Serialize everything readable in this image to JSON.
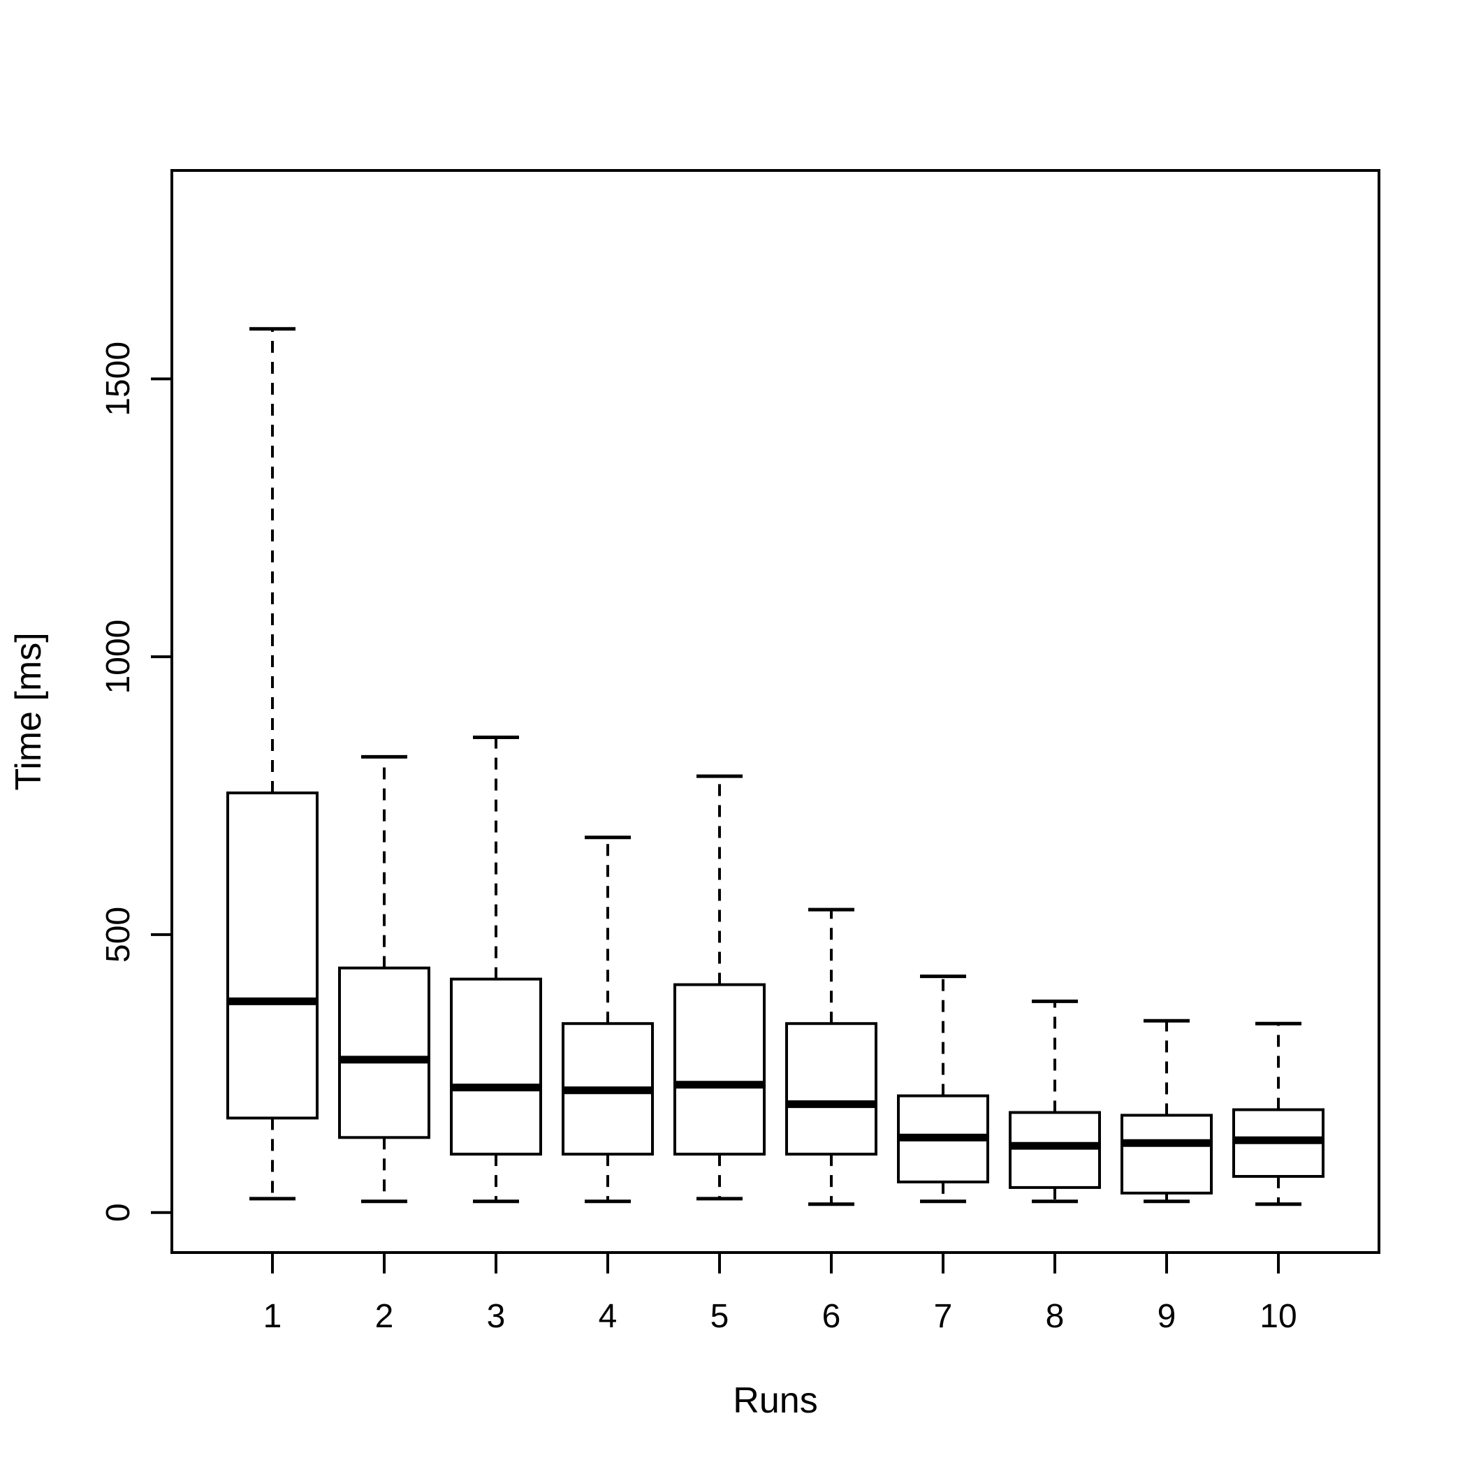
{
  "figure": {
    "background": "#ffffff",
    "stroke_color": "#000000"
  },
  "chart_data": {
    "type": "boxplot",
    "title": "",
    "xlabel": "Runs",
    "ylabel": "Time [ms]",
    "categories": [
      "1",
      "2",
      "3",
      "4",
      "5",
      "6",
      "7",
      "8",
      "9",
      "10"
    ],
    "y_ticks": [
      0,
      500,
      1000,
      1500
    ],
    "ylim": [
      -72,
      1875
    ],
    "grid": false,
    "legend": false,
    "boxes": [
      {
        "run": "1",
        "whisker_low": 25,
        "q1": 170,
        "median": 380,
        "q3": 755,
        "whisker_high": 1590
      },
      {
        "run": "2",
        "whisker_low": 20,
        "q1": 135,
        "median": 275,
        "q3": 440,
        "whisker_high": 820
      },
      {
        "run": "3",
        "whisker_low": 20,
        "q1": 105,
        "median": 225,
        "q3": 420,
        "whisker_high": 855
      },
      {
        "run": "4",
        "whisker_low": 20,
        "q1": 105,
        "median": 220,
        "q3": 340,
        "whisker_high": 675
      },
      {
        "run": "5",
        "whisker_low": 25,
        "q1": 105,
        "median": 230,
        "q3": 410,
        "whisker_high": 785
      },
      {
        "run": "6",
        "whisker_low": 15,
        "q1": 105,
        "median": 195,
        "q3": 340,
        "whisker_high": 545
      },
      {
        "run": "7",
        "whisker_low": 20,
        "q1": 55,
        "median": 135,
        "q3": 210,
        "whisker_high": 425
      },
      {
        "run": "8",
        "whisker_low": 20,
        "q1": 45,
        "median": 120,
        "q3": 180,
        "whisker_high": 380
      },
      {
        "run": "9",
        "whisker_low": 20,
        "q1": 35,
        "median": 125,
        "q3": 175,
        "whisker_high": 345
      },
      {
        "run": "10",
        "whisker_low": 15,
        "q1": 65,
        "median": 130,
        "q3": 185,
        "whisker_high": 340
      }
    ]
  }
}
